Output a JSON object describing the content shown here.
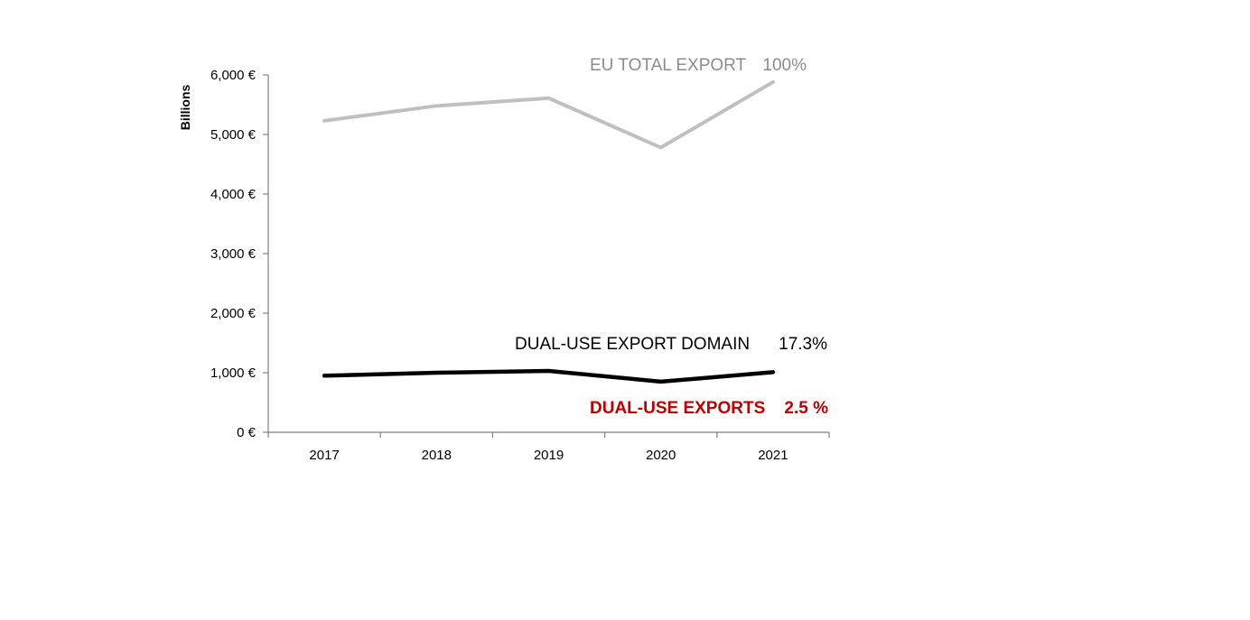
{
  "chart_data": {
    "type": "line",
    "title": "",
    "xlabel": "",
    "ylabel": "Billions",
    "categories": [
      "2017",
      "2018",
      "2019",
      "2020",
      "2021"
    ],
    "ylim": [
      0,
      6000
    ],
    "yticks": [
      0,
      1000,
      2000,
      3000,
      4000,
      5000,
      6000
    ],
    "ytick_labels": [
      "0 €",
      "1,000 €",
      "2,000 €",
      "3,000 €",
      "4,000 €",
      "5,000 €",
      "6,000 €"
    ],
    "grid": false,
    "series": [
      {
        "values": [
          5230,
          5480,
          5610,
          4780,
          5880
        ],
        "color": "#bfbfbf"
      },
      {
        "values": [
          950,
          1000,
          1030,
          850,
          1010
        ],
        "color": "#000000"
      }
    ],
    "annotations": {
      "total": {
        "text": "EU TOTAL EXPORT",
        "pct": "100%",
        "color": "#8c8c8c"
      },
      "domain": {
        "text": "DUAL-USE EXPORT DOMAIN",
        "pct": "17.3%",
        "color": "#000000"
      },
      "dualuse": {
        "text": "DUAL-USE EXPORTS",
        "pct": "2.5 %",
        "color": "#c00000"
      }
    }
  }
}
